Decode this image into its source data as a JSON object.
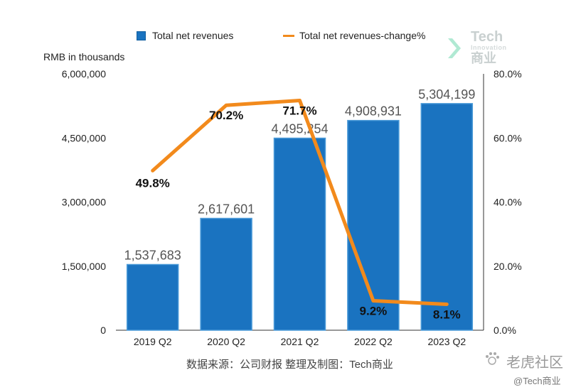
{
  "chart_data": {
    "type": "bar",
    "categories": [
      "2019 Q2",
      "2020 Q2",
      "2021 Q2",
      "2022 Q2",
      "2023 Q2"
    ],
    "series": [
      {
        "name": "Total net revenues",
        "kind": "bar",
        "axis": "left",
        "values": [
          1537683,
          2617601,
          4495254,
          4908931,
          5304199
        ],
        "labels": [
          "1,537,683",
          "2,617,601",
          "4,495,254",
          "4,908,931",
          "5,304,199"
        ]
      },
      {
        "name": "Total net revenues-change%",
        "kind": "line",
        "axis": "right",
        "values": [
          49.8,
          70.2,
          71.7,
          9.2,
          8.1
        ],
        "labels": [
          "49.8%",
          "70.2%",
          "71.7%",
          "9.2%",
          "8.1%"
        ]
      }
    ],
    "ylabel": "RMB in thousands",
    "ylim": [
      0,
      6000000
    ],
    "yticks": [
      0,
      1500000,
      3000000,
      4500000,
      6000000
    ],
    "ytick_labels": [
      "0",
      "1,500,000",
      "3,000,000",
      "4,500,000",
      "6,000,000"
    ],
    "y2lim": [
      0,
      80
    ],
    "y2ticks": [
      0,
      20,
      40,
      60,
      80
    ],
    "y2tick_labels": [
      "0.0%",
      "20.0%",
      "40.0%",
      "60.0%",
      "80.0%"
    ],
    "legend_position": "top",
    "grid": false,
    "colors": {
      "bar": "#1a73c0",
      "bar_border": "#0f5ea0",
      "line": "#f28a1c"
    }
  },
  "source_note": "数据来源：公司财报 整理及制图：Tech商业",
  "logo": {
    "word": "Tech",
    "sub": "Innovation",
    "cn": "商业"
  },
  "watermark": {
    "main": "老虎社区",
    "sub": "@Tech商业"
  }
}
